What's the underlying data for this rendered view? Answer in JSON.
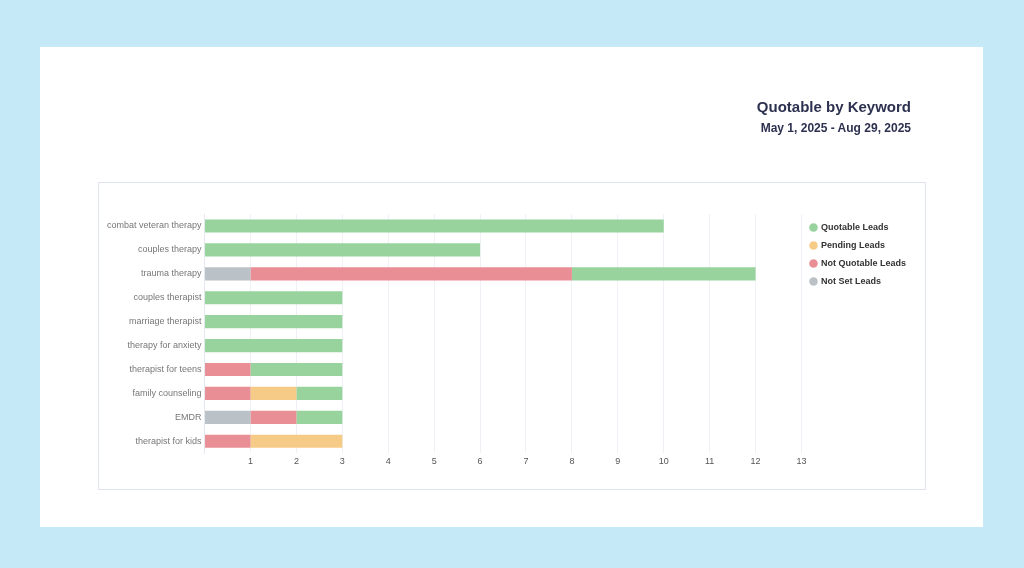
{
  "chart_data": {
    "type": "bar",
    "orientation": "horizontal",
    "stacked": true,
    "title": "Quotable by Keyword",
    "subtitle": "May 1, 2025 - Aug 29, 2025",
    "categories": [
      "combat veteran therapy",
      "couples therapy",
      "trauma therapy",
      "couples therapist",
      "marriage therapist",
      "therapy for anxiety",
      "therapist for teens",
      "family counseling",
      "EMDR",
      "therapist for kids"
    ],
    "series": [
      {
        "name": "Not Set Leads",
        "color": "#bbc2c7",
        "values": [
          null,
          null,
          1,
          null,
          null,
          null,
          null,
          null,
          1,
          null
        ]
      },
      {
        "name": "Not Quotable Leads",
        "color": "#ea8e96",
        "values": [
          null,
          null,
          7,
          null,
          null,
          null,
          1,
          1,
          1,
          1
        ]
      },
      {
        "name": "Pending Leads",
        "color": "#f6cb87",
        "values": [
          null,
          null,
          null,
          null,
          null,
          null,
          null,
          1,
          null,
          2
        ]
      },
      {
        "name": "Quotable Leads",
        "color": "#98d39e",
        "values": [
          10,
          6,
          4,
          3,
          3,
          3,
          2,
          1,
          1,
          null
        ]
      }
    ],
    "xlim": [
      0,
      13
    ],
    "xticks": [
      {
        "value": 0,
        "label": null
      },
      1,
      2,
      3,
      4,
      5,
      6,
      7,
      8,
      9,
      10,
      11,
      12,
      13
    ],
    "grid": "x",
    "legend": "top right"
  }
}
